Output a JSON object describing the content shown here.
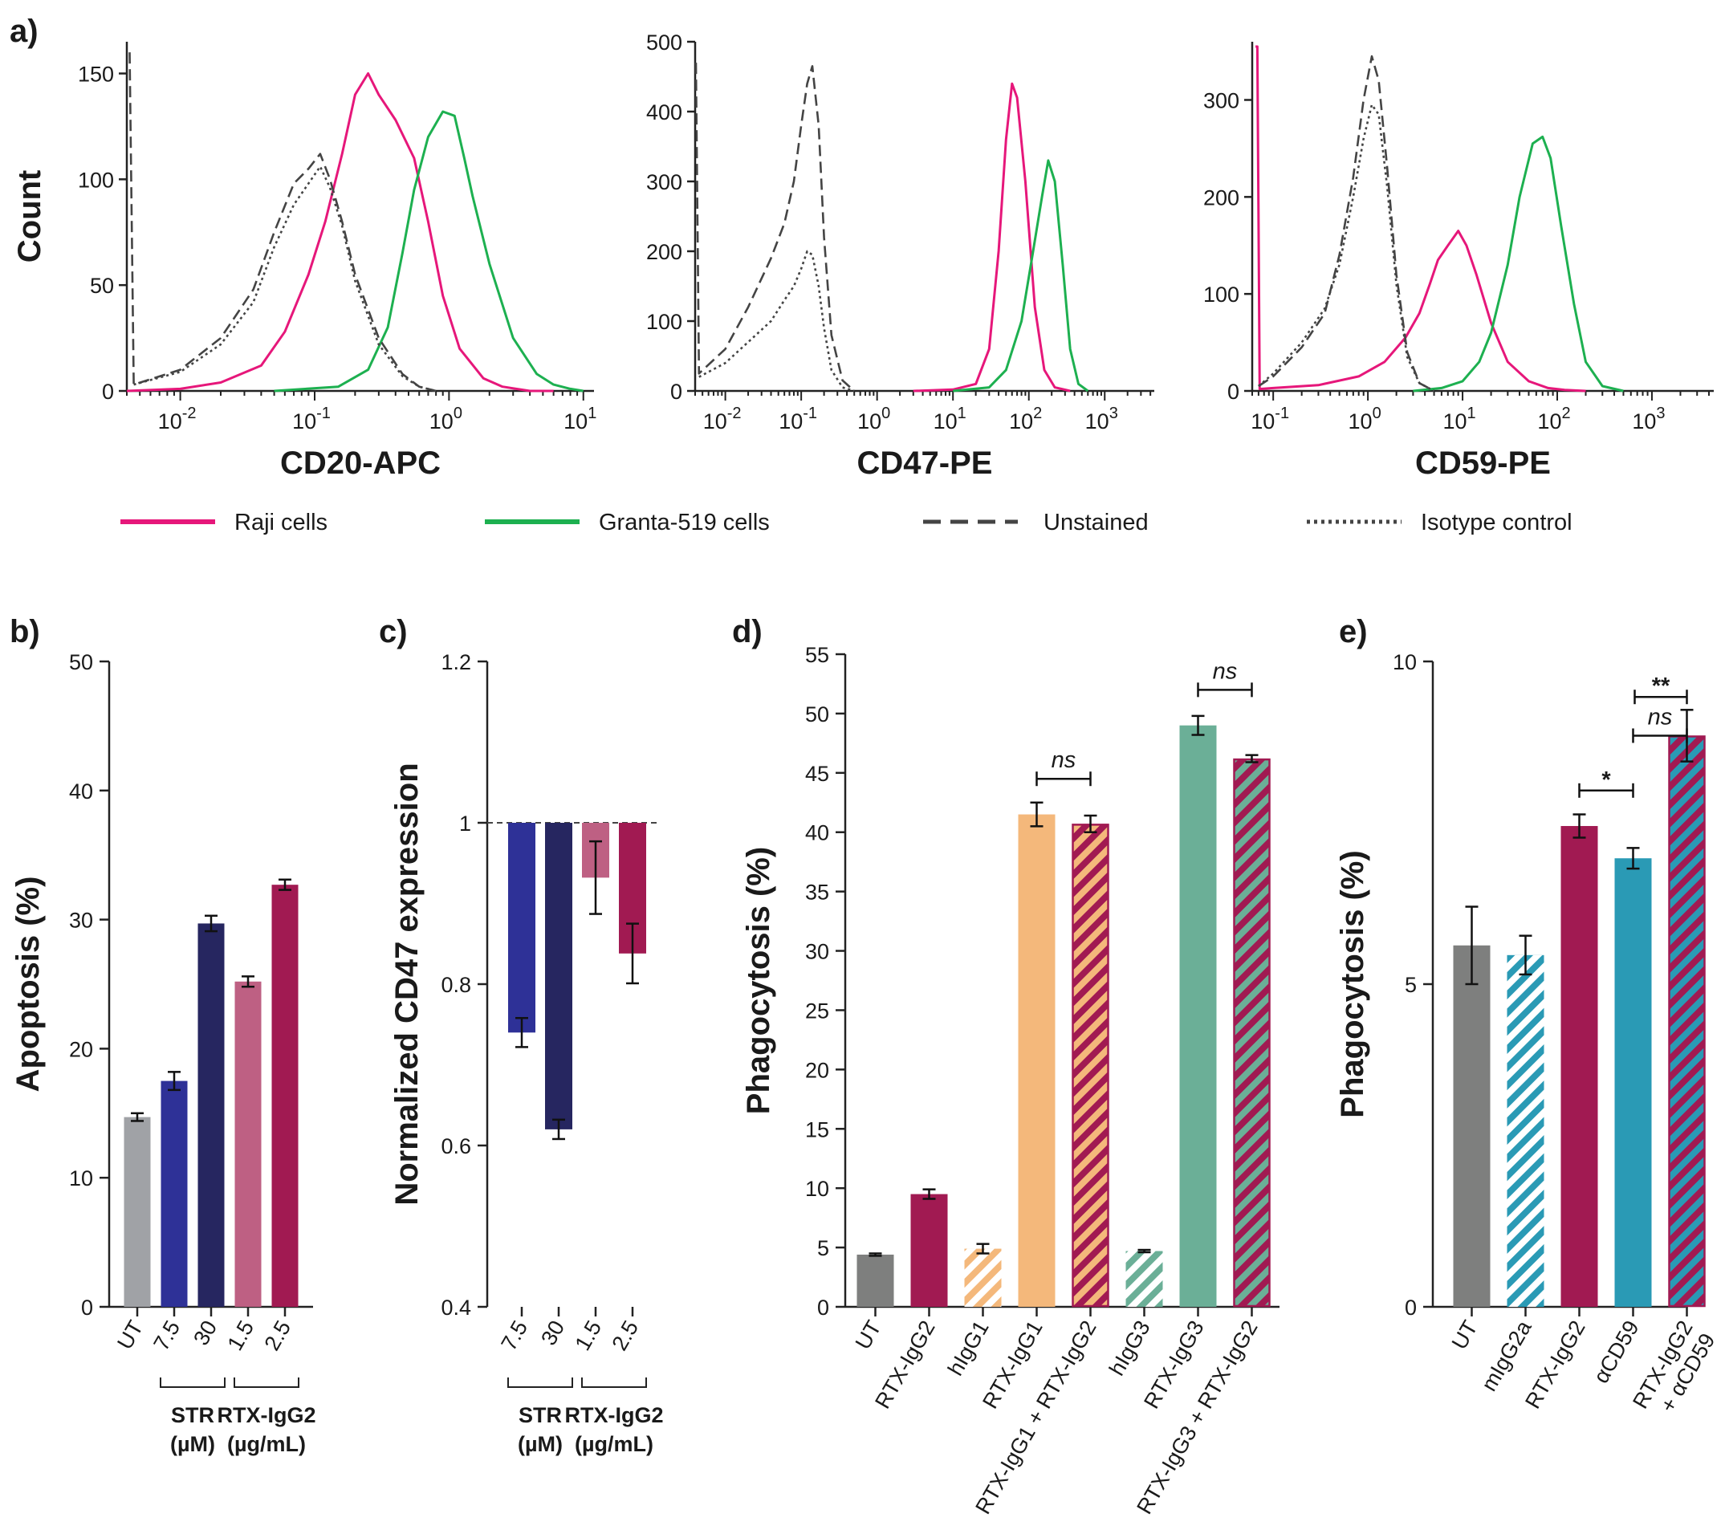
{
  "figure": {
    "legend": [
      {
        "label": "Raji cells",
        "color": "#e6177a",
        "style": "solid"
      },
      {
        "label": "Granta-519 cells",
        "color": "#1db050",
        "style": "solid"
      },
      {
        "label": "Unstained",
        "color": "#444444",
        "style": "dashed"
      },
      {
        "label": "Isotype control",
        "color": "#444444",
        "style": "dotted"
      }
    ]
  },
  "chart_data": [
    {
      "panel": "a)",
      "type": "line",
      "subtype": "histogram",
      "xlabel": "CD20-APC",
      "ylabel": "Count",
      "xscale": "log",
      "xlim": [
        0.004,
        12
      ],
      "ylim": [
        0,
        165
      ],
      "yticks": [
        "0",
        "50",
        "100",
        "150"
      ],
      "yticks_values": [
        0,
        50,
        100,
        150
      ],
      "xticks": [
        {
          "base": "10",
          "exp": "-2",
          "value": 0.01
        },
        {
          "base": "10",
          "exp": "-1",
          "value": 0.1
        },
        {
          "base": "10",
          "exp": "0",
          "value": 1
        },
        {
          "base": "10",
          "exp": "1",
          "value": 10
        }
      ],
      "series": [
        {
          "name": "Raji cells",
          "color": "#e6177a",
          "style": "solid",
          "x": [
            0.004,
            0.01,
            0.02,
            0.04,
            0.06,
            0.09,
            0.12,
            0.16,
            0.2,
            0.25,
            0.3,
            0.4,
            0.55,
            0.7,
            0.9,
            1.2,
            1.8,
            2.5,
            4,
            6
          ],
          "y": [
            0,
            1,
            4,
            12,
            28,
            55,
            80,
            112,
            140,
            150,
            140,
            128,
            110,
            80,
            45,
            20,
            6,
            2,
            0,
            0
          ]
        },
        {
          "name": "Granta-519 cells",
          "color": "#1db050",
          "style": "solid",
          "x": [
            0.05,
            0.15,
            0.25,
            0.35,
            0.45,
            0.55,
            0.7,
            0.9,
            1.1,
            1.3,
            1.5,
            2,
            3,
            4.5,
            6,
            8,
            10
          ],
          "y": [
            0,
            2,
            10,
            30,
            65,
            95,
            120,
            132,
            130,
            110,
            92,
            60,
            25,
            8,
            3,
            1,
            0
          ]
        },
        {
          "name": "Unstained",
          "color": "#444444",
          "style": "dashed",
          "x": [
            0.0042,
            0.0045,
            0.01,
            0.02,
            0.035,
            0.05,
            0.07,
            0.09,
            0.11,
            0.13,
            0.16,
            0.2,
            0.3,
            0.45,
            0.6,
            0.8
          ],
          "y": [
            160,
            3,
            10,
            25,
            48,
            75,
            98,
            105,
            112,
            100,
            80,
            55,
            25,
            8,
            2,
            0
          ]
        },
        {
          "name": "Isotype control",
          "color": "#444444",
          "style": "dotted",
          "x": [
            0.0045,
            0.01,
            0.02,
            0.035,
            0.05,
            0.07,
            0.09,
            0.11,
            0.13,
            0.16,
            0.2,
            0.3,
            0.45,
            0.6,
            0.8
          ],
          "y": [
            3,
            9,
            22,
            42,
            68,
            88,
            98,
            106,
            96,
            78,
            52,
            22,
            7,
            2,
            0
          ]
        }
      ]
    },
    {
      "panel": "",
      "type": "line",
      "subtype": "histogram",
      "xlabel": "CD47-PE",
      "ylabel": "",
      "xscale": "log",
      "xlim": [
        0.004,
        4500
      ],
      "ylim": [
        0,
        500
      ],
      "yticks": [
        "0",
        "100",
        "200",
        "300",
        "400",
        "500"
      ],
      "yticks_values": [
        0,
        100,
        200,
        300,
        400,
        500
      ],
      "xticks": [
        {
          "base": "10",
          "exp": "-2",
          "value": 0.01
        },
        {
          "base": "10",
          "exp": "-1",
          "value": 0.1
        },
        {
          "base": "10",
          "exp": "0",
          "value": 1
        },
        {
          "base": "10",
          "exp": "1",
          "value": 10
        },
        {
          "base": "10",
          "exp": "2",
          "value": 100
        },
        {
          "base": "10",
          "exp": "3",
          "value": 1000
        }
      ],
      "series": [
        {
          "name": "Raji cells",
          "color": "#e6177a",
          "style": "solid",
          "x": [
            3,
            10,
            20,
            30,
            40,
            50,
            60,
            70,
            90,
            120,
            160,
            220,
            350
          ],
          "y": [
            0,
            2,
            10,
            60,
            200,
            360,
            440,
            420,
            300,
            120,
            30,
            5,
            0
          ]
        },
        {
          "name": "Granta-519 cells",
          "color": "#1db050",
          "style": "solid",
          "x": [
            10,
            30,
            50,
            80,
            110,
            150,
            180,
            220,
            280,
            350,
            450,
            600
          ],
          "y": [
            0,
            5,
            30,
            100,
            190,
            280,
            330,
            300,
            180,
            60,
            10,
            0
          ]
        },
        {
          "name": "Unstained",
          "color": "#444444",
          "style": "dashed",
          "x": [
            0.0041,
            0.0045,
            0.01,
            0.02,
            0.04,
            0.06,
            0.08,
            0.1,
            0.12,
            0.14,
            0.17,
            0.2,
            0.25,
            0.35,
            0.5
          ],
          "y": [
            470,
            25,
            60,
            120,
            190,
            240,
            300,
            380,
            440,
            465,
            380,
            220,
            80,
            15,
            0
          ]
        },
        {
          "name": "Isotype control",
          "color": "#444444",
          "style": "dotted",
          "x": [
            0.0045,
            0.01,
            0.02,
            0.04,
            0.06,
            0.08,
            0.1,
            0.12,
            0.14,
            0.17,
            0.2,
            0.25,
            0.35,
            0.5
          ],
          "y": [
            20,
            40,
            70,
            100,
            130,
            150,
            175,
            200,
            195,
            150,
            90,
            30,
            5,
            0
          ]
        }
      ]
    },
    {
      "panel": "",
      "type": "line",
      "subtype": "histogram",
      "xlabel": "CD59-PE",
      "ylabel": "",
      "xscale": "log",
      "xlim": [
        0.06,
        4500
      ],
      "ylim": [
        0,
        360
      ],
      "yticks": [
        "0",
        "100",
        "200",
        "300"
      ],
      "yticks_values": [
        0,
        100,
        200,
        300
      ],
      "xticks": [
        {
          "base": "10",
          "exp": "-1",
          "value": 0.1
        },
        {
          "base": "10",
          "exp": "0",
          "value": 1
        },
        {
          "base": "10",
          "exp": "1",
          "value": 10
        },
        {
          "base": "10",
          "exp": "2",
          "value": 100
        },
        {
          "base": "10",
          "exp": "3",
          "value": 1000
        }
      ],
      "series": [
        {
          "name": "Raji cells",
          "color": "#e6177a",
          "style": "solid",
          "x": [
            0.065,
            0.068,
            0.072,
            0.1,
            0.3,
            0.8,
            1.5,
            2.5,
            3.5,
            4.5,
            5.5,
            7,
            9,
            11,
            14,
            20,
            30,
            50,
            80,
            120,
            200
          ],
          "y": [
            355,
            355,
            2,
            3,
            6,
            15,
            30,
            55,
            80,
            110,
            135,
            150,
            165,
            150,
            120,
            70,
            30,
            10,
            3,
            1,
            0
          ]
        },
        {
          "name": "Granta-519 cells",
          "color": "#1db050",
          "style": "solid",
          "x": [
            3,
            6,
            10,
            15,
            20,
            30,
            40,
            55,
            70,
            85,
            110,
            150,
            200,
            300,
            500
          ],
          "y": [
            0,
            3,
            10,
            30,
            60,
            130,
            200,
            255,
            262,
            240,
            170,
            90,
            30,
            5,
            0
          ]
        },
        {
          "name": "Unstained",
          "color": "#444444",
          "style": "dashed",
          "x": [
            0.07,
            0.1,
            0.2,
            0.35,
            0.5,
            0.7,
            0.9,
            1.1,
            1.3,
            1.6,
            2,
            2.6,
            3.5,
            5
          ],
          "y": [
            5,
            15,
            45,
            80,
            140,
            220,
            300,
            345,
            320,
            230,
            120,
            40,
            8,
            0
          ]
        },
        {
          "name": "Isotype control",
          "color": "#444444",
          "style": "dotted",
          "x": [
            0.07,
            0.1,
            0.2,
            0.35,
            0.5,
            0.7,
            0.9,
            1.1,
            1.3,
            1.6,
            2,
            2.6,
            3.5,
            5
          ],
          "y": [
            5,
            18,
            50,
            85,
            130,
            200,
            260,
            295,
            285,
            210,
            110,
            35,
            8,
            0
          ]
        }
      ]
    },
    {
      "panel": "b)",
      "type": "bar",
      "ylabel": "Apoptosis (%)",
      "ylim": [
        0,
        50
      ],
      "yticks": [
        "0",
        "10",
        "20",
        "30",
        "40",
        "50"
      ],
      "yticks_values": [
        0,
        10,
        20,
        30,
        40,
        50
      ],
      "categories": [
        "UT",
        "7.5",
        "30",
        "1.5",
        "2.5"
      ],
      "values": [
        14.7,
        17.5,
        29.7,
        25.2,
        32.7
      ],
      "errors": [
        0.3,
        0.7,
        0.6,
        0.4,
        0.4
      ],
      "colors": [
        "#a0a2a6",
        "#2e3197",
        "#262660",
        "#be6083",
        "#a11a52"
      ],
      "groups": [
        {
          "label_line1": "STR",
          "label_line2": "(µM)",
          "from": 1,
          "to": 2
        },
        {
          "label_line1": "RTX-IgG2",
          "label_line2": "(µg/mL)",
          "from": 3,
          "to": 4
        }
      ]
    },
    {
      "panel": "c)",
      "type": "bar",
      "ylabel": "Normalized CD47 expression",
      "ylim": [
        0.4,
        1.2
      ],
      "yticks": [
        "0.4",
        "0.6",
        "0.8",
        "1",
        "1.2"
      ],
      "yticks_values": [
        0.4,
        0.6,
        0.8,
        1.0,
        1.2
      ],
      "baseline": 1.0,
      "categories": [
        "7.5",
        "30",
        "1.5",
        "2.5"
      ],
      "values": [
        0.74,
        0.62,
        0.932,
        0.838
      ],
      "errors": [
        0.018,
        0.012,
        0.045,
        0.037
      ],
      "colors": [
        "#2e3197",
        "#262660",
        "#be6083",
        "#a11a52"
      ],
      "groups": [
        {
          "label_line1": "STR",
          "label_line2": "(µM)",
          "from": 0,
          "to": 1
        },
        {
          "label_line1": "RTX-IgG2",
          "label_line2": "(µg/mL)",
          "from": 2,
          "to": 3
        }
      ]
    },
    {
      "panel": "d)",
      "type": "bar",
      "ylabel": "Phagocytosis (%)",
      "ylim": [
        0,
        55
      ],
      "yticks": [
        "0",
        "5",
        "10",
        "15",
        "20",
        "25",
        "30",
        "35",
        "40",
        "45",
        "50",
        "55"
      ],
      "yticks_values": [
        0,
        5,
        10,
        15,
        20,
        25,
        30,
        35,
        40,
        45,
        50,
        55
      ],
      "categories": [
        "UT",
        "RTX-IgG2",
        "hIgG1",
        "RTX-IgG1",
        "RTX-IgG1 + RTX-IgG2",
        "hIgG3",
        "RTX-IgG3",
        "RTX-IgG3 + RTX-IgG2"
      ],
      "values": [
        4.4,
        9.5,
        4.9,
        41.5,
        40.7,
        4.7,
        49,
        46.2
      ],
      "errors": [
        0.1,
        0.4,
        0.4,
        1.0,
        0.7,
        0.1,
        0.8,
        0.3
      ],
      "colors": [
        "#7e7f7e",
        "#a11a52",
        "#f4b87b",
        "#f4b87b",
        "#f4b87b",
        "#6baf97",
        "#6baf97",
        "#6baf97"
      ],
      "hatch": [
        "none",
        "none",
        "white",
        "none",
        "maroon",
        "white",
        "none",
        "maroon"
      ],
      "significance": [
        {
          "label": "ns",
          "from": 3,
          "to": 4,
          "level": 44.5
        },
        {
          "label": "ns",
          "from": 6,
          "to": 7,
          "level": 52
        }
      ]
    },
    {
      "panel": "e)",
      "type": "bar",
      "ylabel": "Phagocytosis (%)",
      "ylim": [
        0,
        10
      ],
      "yticks": [
        "0",
        "5",
        "10"
      ],
      "yticks_values": [
        0,
        5,
        10
      ],
      "categories": [
        "UT",
        "mIgG2a",
        "RTX-IgG2",
        "αCD59",
        "RTX-IgG2 + αCD59"
      ],
      "category_lines": [
        [
          "UT"
        ],
        [
          "mIgG2a"
        ],
        [
          "RTX-IgG2"
        ],
        [
          "αCD59"
        ],
        [
          "RTX-IgG2",
          "+ αCD59"
        ]
      ],
      "values": [
        5.6,
        5.45,
        7.45,
        6.95,
        8.85
      ],
      "errors": [
        0.6,
        0.3,
        0.18,
        0.16,
        0.4
      ],
      "colors": [
        "#7e7f7e",
        "#2a9ab5",
        "#a11a52",
        "#2a9ab5",
        "#2a9ab5"
      ],
      "hatch": [
        "none",
        "white",
        "none",
        "none",
        "maroon"
      ],
      "significance": [
        {
          "label": "*",
          "from": 2,
          "to": 3,
          "level": 8.0,
          "italic": false
        },
        {
          "label": "ns",
          "from": 3,
          "to": 4,
          "level": 8.85,
          "italic": true
        },
        {
          "label": "**",
          "from": 3,
          "to": 4,
          "level": 9.45,
          "italic": false,
          "shift_right": true
        }
      ]
    }
  ]
}
